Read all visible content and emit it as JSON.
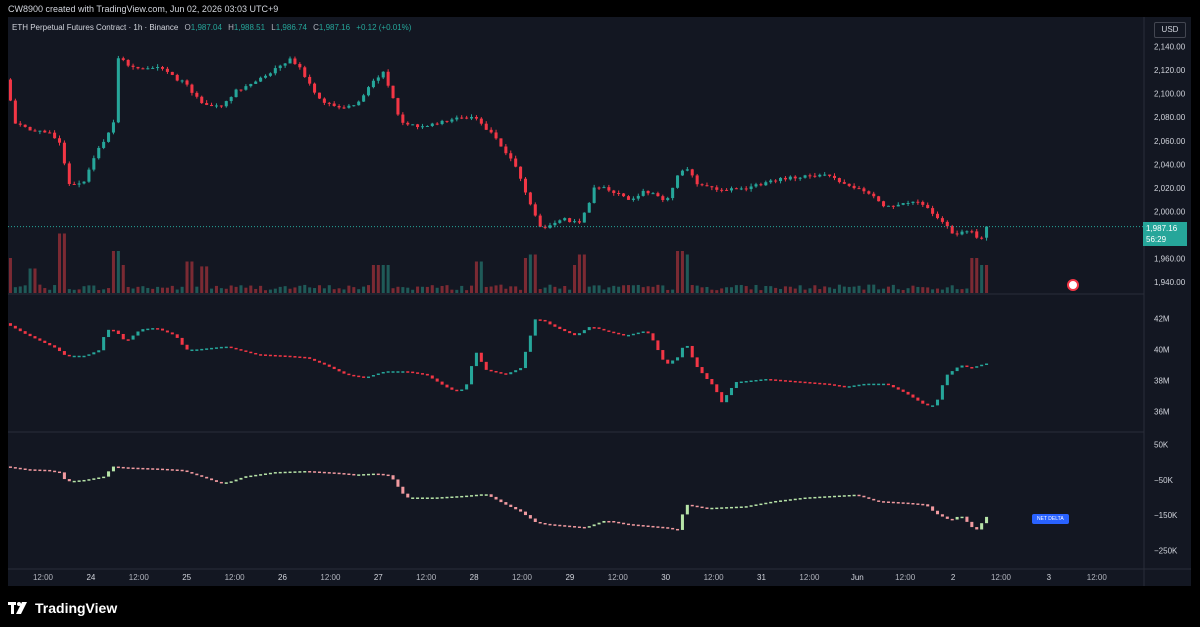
{
  "attribution": "CW8900 created with TradingView.com, Jun 02, 2026 03:03 UTC+9",
  "legend": {
    "symbol": "ETH Perpetual Futures Contract · 1h · Binance",
    "open_label": "O",
    "open": "1,987.04",
    "high_label": "H",
    "high": "1,988.51",
    "low_label": "L",
    "low": "1,986.74",
    "close_label": "C",
    "close": "1,987.16",
    "change": "+0.12 (+0.01%)"
  },
  "currency": "USD",
  "last_price": "1,987.16",
  "countdown": "56:29",
  "net_delta_label": "NET DELTA",
  "brand": "TradingView",
  "colors": {
    "up": "#26a69a",
    "down": "#f23645",
    "cvd_up": "#b7e4a8",
    "cvd_down": "#f19aa0",
    "volume_up": "#1f5a58",
    "volume_down": "#7b2a33",
    "background": "#131722"
  },
  "chart_data": [
    {
      "type": "candlestick",
      "panel": "price",
      "ylim": [
        1935,
        2160
      ],
      "y_ticks": [
        "2,140.00",
        "2,120.00",
        "2,100.00",
        "2,080.00",
        "2,060.00",
        "2,040.00",
        "2,020.00",
        "2,000.00",
        "1,960.00",
        "1,940.00"
      ],
      "y_tick_values": [
        2140,
        2120,
        2100,
        2080,
        2060,
        2040,
        2020,
        2000,
        1960,
        1940
      ],
      "anchors_x": [
        0,
        10,
        24,
        40,
        56,
        62,
        78,
        90,
        108,
        112,
        130,
        150,
        158,
        180,
        196,
        214,
        230,
        250,
        268,
        285,
        296,
        310,
        330,
        352,
        366,
        378,
        396,
        420,
        450,
        470,
        490,
        510,
        520,
        535,
        555,
        575,
        590,
        610,
        625,
        640,
        660,
        672,
        680,
        690,
        710,
        740,
        760,
        780,
        800,
        820,
        840,
        860,
        880,
        900,
        915,
        930,
        950,
        965,
        975,
        981
      ],
      "anchors_y": [
        2112,
        2075,
        2070,
        2068,
        2058,
        2022,
        2025,
        2048,
        2075,
        2130,
        2122,
        2123,
        2120,
        2108,
        2092,
        2088,
        2102,
        2110,
        2120,
        2130,
        2120,
        2098,
        2088,
        2092,
        2110,
        2118,
        2075,
        2072,
        2080,
        2080,
        2062,
        2038,
        2015,
        1985,
        1994,
        1990,
        2022,
        2016,
        2008,
        2018,
        2008,
        2030,
        2040,
        2024,
        2018,
        2020,
        2024,
        2028,
        2030,
        2032,
        2022,
        2018,
        2004,
        2008,
        2008,
        1995,
        1980,
        1984,
        1975,
        1987
      ]
    },
    {
      "type": "volume",
      "panel": "price",
      "spikes": [
        [
          0,
          0.5
        ],
        [
          24,
          0.35
        ],
        [
          53,
          0.85
        ],
        [
          108,
          0.6
        ],
        [
          112,
          0.4
        ],
        [
          180,
          0.45
        ],
        [
          196,
          0.38
        ],
        [
          366,
          0.4
        ],
        [
          378,
          0.4
        ],
        [
          470,
          0.45
        ],
        [
          520,
          0.5
        ],
        [
          525,
          0.55
        ],
        [
          570,
          0.4
        ],
        [
          575,
          0.55
        ],
        [
          672,
          0.6
        ],
        [
          678,
          0.55
        ],
        [
          965,
          0.5
        ],
        [
          977,
          0.4
        ]
      ]
    },
    {
      "type": "candlestick",
      "panel": "indicator-2",
      "y_ticks": [
        "42M",
        "40M",
        "38M",
        "36M"
      ],
      "y_tick_values": [
        42,
        40,
        38,
        36
      ],
      "ylim": [
        35.2,
        43
      ],
      "anchors_x": [
        0,
        20,
        50,
        60,
        80,
        95,
        100,
        110,
        120,
        135,
        150,
        170,
        180,
        190,
        220,
        250,
        280,
        300,
        320,
        340,
        360,
        380,
        400,
        420,
        440,
        450,
        460,
        470,
        480,
        500,
        515,
        530,
        540,
        545,
        555,
        570,
        585,
        600,
        620,
        640,
        645,
        660,
        672,
        680,
        690,
        700,
        710,
        715,
        730,
        760,
        780,
        820,
        840,
        860,
        880,
        900,
        920,
        930,
        940,
        955,
        965,
        980
      ],
      "anchors_y": [
        41.7,
        41.0,
        40.1,
        39.6,
        39.6,
        40.0,
        41.3,
        41.2,
        40.5,
        41.3,
        41.4,
        40.9,
        40.0,
        40.0,
        40.2,
        39.7,
        39.6,
        39.5,
        39.0,
        38.4,
        38.2,
        38.6,
        38.6,
        38.4,
        37.6,
        37.3,
        37.5,
        39.9,
        38.7,
        38.4,
        38.8,
        42.0,
        41.8,
        41.6,
        41.3,
        40.9,
        41.5,
        41.2,
        40.9,
        41.2,
        40.9,
        39.0,
        39.5,
        40.5,
        39.0,
        38.2,
        37.5,
        36.5,
        37.9,
        38.1,
        38.0,
        37.8,
        37.6,
        37.8,
        37.8,
        37.2,
        36.4,
        36.4,
        38.3,
        39.0,
        38.8,
        39.1
      ]
    },
    {
      "type": "candlestick",
      "panel": "indicator-3",
      "y_ticks": [
        "50K",
        "−50K",
        "−150K",
        "−250K"
      ],
      "y_tick_values": [
        50,
        -50,
        -150,
        -250
      ],
      "ylim": [
        -280,
        60
      ],
      "anchors_x": [
        0,
        20,
        40,
        56,
        60,
        80,
        100,
        106,
        120,
        150,
        175,
        200,
        215,
        225,
        240,
        270,
        300,
        330,
        350,
        370,
        385,
        390,
        400,
        430,
        460,
        480,
        500,
        515,
        530,
        540,
        560,
        580,
        600,
        620,
        640,
        660,
        672,
        680,
        700,
        740,
        770,
        800,
        830,
        850,
        870,
        900,
        920,
        930,
        945,
        955,
        970,
        981
      ],
      "anchors_y": [
        -12,
        -20,
        -22,
        -30,
        -55,
        -50,
        -40,
        -12,
        -15,
        -18,
        -22,
        -45,
        -60,
        -55,
        -40,
        -28,
        -25,
        -30,
        -35,
        -32,
        -38,
        -60,
        -100,
        -100,
        -95,
        -90,
        -120,
        -140,
        -170,
        -175,
        -180,
        -185,
        -165,
        -175,
        -180,
        -185,
        -192,
        -120,
        -130,
        -125,
        -110,
        -100,
        -95,
        -92,
        -110,
        -115,
        -120,
        -145,
        -165,
        -150,
        -195,
        -155
      ]
    },
    {
      "type": "time-axis",
      "x_ticks": [
        "12:00",
        "24",
        "12:00",
        "25",
        "12:00",
        "26",
        "12:00",
        "27",
        "12:00",
        "28",
        "12:00",
        "29",
        "12:00",
        "30",
        "12:00",
        "31",
        "12:00",
        "Jun",
        "12:00",
        "2",
        "12:00",
        "3",
        "12:00"
      ]
    }
  ]
}
